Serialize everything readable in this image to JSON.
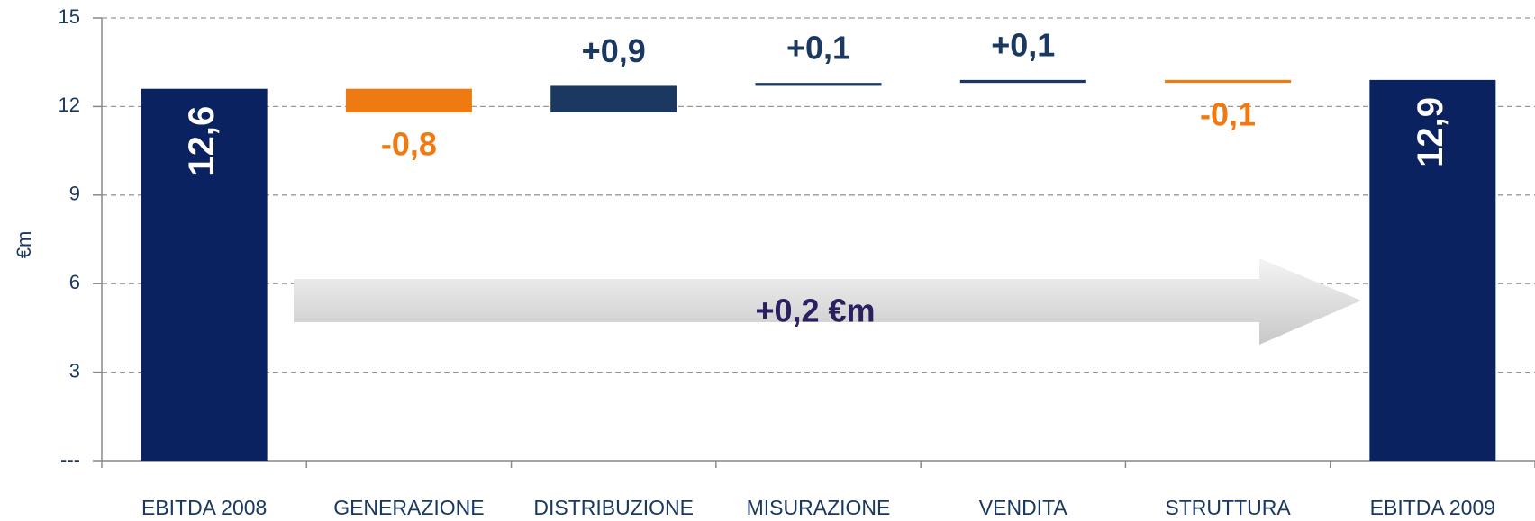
{
  "chart_data": {
    "type": "waterfall",
    "y_label": "€m",
    "annotation": "+0,2 €m",
    "categories": [
      "EBITDA 2008",
      "GENERAZIONE",
      "DISTRIBUZIONE",
      "MISURAZIONE",
      "VENDITA",
      "STRUTTURA",
      "EBITDA 2009"
    ],
    "values": [
      12.6,
      -0.8,
      0.9,
      0.1,
      0.1,
      -0.1,
      12.9
    ],
    "value_labels": [
      "12,6",
      "-0,8",
      "+0,9",
      "+0,1",
      "+0,1",
      "-0,1",
      "12,9"
    ],
    "totals": [
      true,
      false,
      false,
      false,
      false,
      false,
      true
    ],
    "colors": {
      "total": "#0b2260",
      "increase": "#1a3860",
      "decrease": "#f07a12"
    },
    "ylim": [
      0,
      15
    ],
    "yticks": [
      {
        "value": 0,
        "label": "---"
      },
      3,
      6,
      9,
      12,
      15
    ],
    "grid": true
  }
}
